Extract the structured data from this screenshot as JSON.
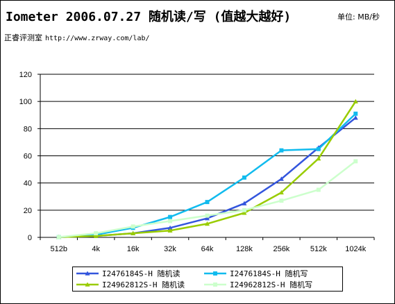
{
  "header": {
    "title": "Iometer 2006.07.27 随机读/写 (值越大越好)",
    "unit": "单位: MB/秒",
    "source_label": "正睿评测室",
    "source_url": "http://www.zrway.com/lab/"
  },
  "chart_data": {
    "type": "line",
    "title": "Iometer 2006.07.27 随机读/写 (值越大越好)",
    "xlabel": "",
    "ylabel": "",
    "categories": [
      "512b",
      "4k",
      "16k",
      "32k",
      "64k",
      "128k",
      "256k",
      "512k",
      "1024k"
    ],
    "ylim": [
      0,
      120
    ],
    "yticks": [
      0,
      20,
      40,
      60,
      80,
      100,
      120
    ],
    "grid": true,
    "legend_position": "bottom",
    "series": [
      {
        "name": "I2476184S-H 随机读",
        "color": "#3355dd",
        "marker": "triangle",
        "values": [
          0.2,
          1,
          3,
          7,
          14,
          25,
          43,
          66,
          88
        ]
      },
      {
        "name": "I2476184S-H 随机写",
        "color": "#11bbee",
        "marker": "square",
        "values": [
          0.2,
          2,
          7,
          15,
          26,
          44,
          64,
          65,
          91
        ]
      },
      {
        "name": "I24962812S-H 随机读",
        "color": "#99cc00",
        "marker": "triangle",
        "values": [
          0.2,
          1,
          3,
          5,
          10,
          18,
          33,
          58,
          100
        ]
      },
      {
        "name": "I24962812S-H 随机写",
        "color": "#ccffcc",
        "marker": "square",
        "values": [
          0.2,
          3,
          8,
          12,
          16,
          20,
          27,
          35,
          56
        ]
      }
    ]
  }
}
